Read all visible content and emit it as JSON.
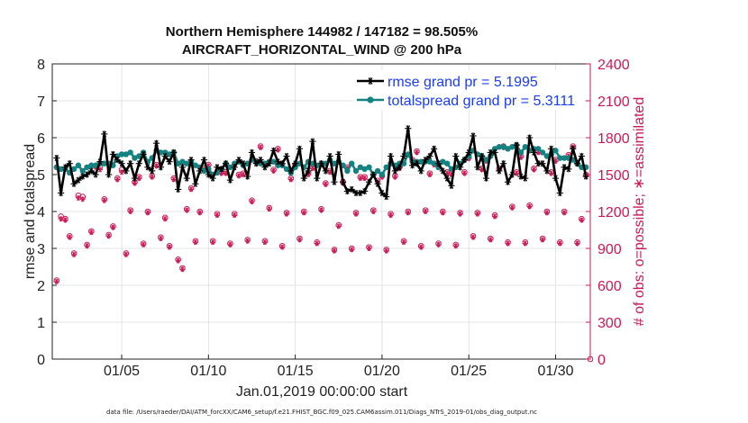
{
  "chart_data": {
    "type": "line",
    "title": "Northern Hemisphere 144982 / 147182 = 98.505%",
    "subtitle": "AIRCRAFT_HORIZONTAL_WIND @ 200 hPa",
    "xlabel": "Jan.01,2019 00:00:00 start",
    "ylabel": "rmse and totalspread",
    "ylabel_right": "# of obs: o=possible; ∗=assimilated",
    "footnote": "data file: /Users/raeder/DAI/ATM_forcXX/CAM6_setup/f.e21.FHIST_BGC.f09_025.CAM6assim.011/Diags_NTrS_2019-01/obs_diag_output.nc",
    "xlim": [
      1,
      32
    ],
    "ylim": [
      0,
      8
    ],
    "ylim_right": [
      0,
      2400
    ],
    "x_ticks": [
      5,
      10,
      15,
      20,
      25,
      30
    ],
    "x_tick_labels": [
      "01/05",
      "01/10",
      "01/15",
      "01/20",
      "01/25",
      "01/30"
    ],
    "y_ticks": [
      0,
      1,
      2,
      3,
      4,
      5,
      6,
      7,
      8
    ],
    "y_tick_labels": [
      "0",
      "1",
      "2",
      "3",
      "4",
      "5",
      "6",
      "7",
      "8"
    ],
    "y_ticks_right": [
      0,
      300,
      600,
      900,
      1200,
      1500,
      1800,
      2100,
      2400
    ],
    "y_tick_labels_right": [
      "0",
      "300",
      "600",
      "900",
      "1200",
      "1500",
      "1800",
      "2100",
      "2400"
    ],
    "grid": true,
    "legend_position": "top-right",
    "x": [
      1.25,
      1.5,
      1.75,
      2.0,
      2.25,
      2.5,
      2.75,
      3.0,
      3.25,
      3.5,
      3.75,
      4.0,
      4.25,
      4.5,
      4.75,
      5.0,
      5.25,
      5.5,
      5.75,
      6.0,
      6.25,
      6.5,
      6.75,
      7.0,
      7.25,
      7.5,
      7.75,
      8.0,
      8.25,
      8.5,
      8.75,
      9.0,
      9.25,
      9.5,
      9.75,
      10.0,
      10.25,
      10.5,
      10.75,
      11.0,
      11.25,
      11.5,
      11.75,
      12.0,
      12.25,
      12.5,
      12.75,
      13.0,
      13.25,
      13.5,
      13.75,
      14.0,
      14.25,
      14.5,
      14.75,
      15.0,
      15.25,
      15.5,
      15.75,
      16.0,
      16.25,
      16.5,
      16.75,
      17.0,
      17.25,
      17.5,
      17.75,
      18.0,
      18.25,
      18.5,
      18.75,
      19.0,
      19.25,
      19.5,
      19.75,
      20.0,
      20.25,
      20.5,
      20.75,
      21.0,
      21.25,
      21.5,
      21.75,
      22.0,
      22.25,
      22.5,
      22.75,
      23.0,
      23.25,
      23.5,
      23.75,
      24.0,
      24.25,
      24.5,
      24.75,
      25.0,
      25.25,
      25.5,
      25.75,
      26.0,
      26.25,
      26.5,
      26.75,
      27.0,
      27.25,
      27.5,
      27.75,
      28.0,
      28.25,
      28.5,
      28.75,
      29.0,
      29.25,
      29.5,
      29.75,
      30.0,
      30.25,
      30.5,
      30.75,
      31.0,
      31.25,
      31.5,
      31.75
    ],
    "series": [
      {
        "name": "rmse grand pr = 5.1995",
        "color": "#000000",
        "marker": "star",
        "values": [
          5.45,
          4.5,
          5.2,
          5.3,
          4.75,
          4.85,
          4.95,
          5.0,
          5.1,
          5.0,
          5.35,
          6.1,
          5.0,
          5.55,
          5.4,
          5.3,
          5.1,
          5.3,
          4.9,
          5.3,
          5.55,
          5.2,
          5.1,
          5.85,
          5.2,
          5.5,
          5.35,
          5.6,
          4.6,
          5.2,
          4.9,
          5.4,
          4.75,
          5.1,
          5.4,
          5.0,
          4.9,
          5.2,
          5.15,
          5.3,
          4.85,
          5.2,
          5.4,
          5.3,
          4.95,
          5.6,
          5.3,
          5.4,
          5.2,
          5.3,
          5.65,
          5.35,
          5.3,
          5.5,
          5.1,
          5.3,
          5.7,
          4.9,
          5.1,
          5.9,
          4.9,
          5.3,
          5.1,
          5.5,
          4.8,
          5.55,
          4.8,
          4.55,
          4.6,
          4.5,
          4.5,
          4.55,
          4.8,
          5.0,
          4.75,
          4.5,
          4.4,
          5.5,
          5.1,
          5.2,
          5.5,
          6.25,
          5.25,
          5.3,
          5.1,
          5.4,
          5.5,
          5.7,
          5.3,
          5.1,
          4.9,
          4.7,
          5.5,
          5.2,
          5.4,
          5.6,
          6.05,
          5.2,
          5.5,
          4.9,
          5.6,
          5.6,
          5.1,
          5.3,
          4.8,
          5.0,
          5.8,
          4.95,
          4.9,
          6.0,
          5.6,
          5.3,
          5.3,
          5.1,
          5.7,
          4.9,
          4.5,
          5.2,
          5.15,
          5.7,
          5.3,
          5.5,
          4.95
        ]
      },
      {
        "name": "totalspread grand pr = 5.3111",
        "color": "#138280",
        "marker": "circle",
        "values": [
          5.2,
          5.15,
          5.15,
          5.05,
          5.15,
          5.25,
          5.1,
          5.2,
          5.25,
          5.25,
          5.3,
          5.3,
          5.3,
          5.25,
          5.5,
          5.55,
          5.55,
          5.6,
          5.45,
          5.5,
          5.6,
          5.35,
          5.45,
          5.65,
          5.6,
          5.6,
          5.55,
          5.6,
          5.3,
          5.35,
          5.3,
          5.35,
          5.25,
          5.2,
          5.1,
          5.15,
          5.0,
          5.05,
          5.15,
          5.3,
          5.2,
          5.3,
          5.35,
          5.25,
          5.3,
          5.4,
          5.35,
          5.3,
          5.3,
          5.35,
          5.35,
          5.25,
          5.25,
          5.15,
          5.05,
          5.2,
          5.3,
          5.2,
          5.35,
          5.3,
          5.25,
          5.3,
          5.3,
          5.4,
          5.3,
          5.35,
          5.25,
          5.1,
          5.3,
          5.1,
          5.2,
          5.15,
          5.2,
          5.0,
          5.1,
          5.0,
          5.2,
          5.3,
          5.25,
          5.3,
          5.3,
          5.55,
          5.35,
          5.35,
          5.35,
          5.35,
          5.35,
          5.3,
          5.2,
          5.35,
          5.3,
          5.15,
          5.2,
          5.3,
          5.4,
          5.5,
          5.65,
          5.55,
          5.5,
          5.4,
          5.5,
          5.7,
          5.75,
          5.75,
          5.7,
          5.75,
          5.8,
          5.6,
          5.75,
          5.65,
          5.7,
          5.7,
          5.6,
          5.5,
          5.55,
          5.65,
          5.45,
          5.45,
          5.45,
          5.4,
          5.3,
          5.2,
          5.2
        ]
      }
    ],
    "obs_series": [
      {
        "name": "possible",
        "marker": "o",
        "color": "#cc1a55",
        "values": [
          640,
          1160,
          1140,
          1000,
          860,
          1330,
          1320,
          930,
          1040,
          1570,
          1560,
          1300,
          1010,
          1080,
          1470,
          1540,
          860,
          1210,
          1440,
          1480,
          940,
          1200,
          1490,
          1580,
          990,
          1150,
          920,
          1470,
          810,
          740,
          1220,
          1390,
          960,
          1200,
          1550,
          1580,
          960,
          1180,
          1520,
          1520,
          940,
          1180,
          1500,
          1510,
          970,
          1290,
          1610,
          1730,
          960,
          1230,
          1540,
          1710,
          920,
          1190,
          1470,
          1580,
          980,
          1200,
          1510,
          1560,
          950,
          1220,
          1430,
          1530,
          890,
          1090,
          1440,
          1560,
          900,
          1190,
          1480,
          1480,
          910,
          1210,
          1450,
          1490,
          890,
          1180,
          1490,
          1560,
          960,
          1200,
          1620,
          1690,
          920,
          1210,
          1510,
          1590,
          940,
          1200,
          1520,
          1510,
          930,
          1190,
          1520,
          1640,
          1000,
          1190,
          1550,
          1620,
          980,
          1170,
          1550,
          1730,
          950,
          1240,
          1520,
          1650,
          950,
          1250,
          1550,
          1690,
          980,
          1200,
          1520,
          1620,
          950,
          1200,
          1660,
          1730,
          950,
          1140,
          1500
        ]
      },
      {
        "name": "assimilated",
        "marker": "asterisk",
        "color": "#cc1a55",
        "values": [
          630,
          1140,
          1130,
          990,
          850,
          1310,
          1300,
          920,
          1030,
          1560,
          1540,
          1290,
          1000,
          1070,
          1460,
          1520,
          850,
          1200,
          1430,
          1470,
          930,
          1190,
          1480,
          1570,
          980,
          1140,
          910,
          1460,
          800,
          730,
          1210,
          1380,
          950,
          1190,
          1540,
          1570,
          950,
          1170,
          1510,
          1510,
          930,
          1170,
          1490,
          1500,
          960,
          1280,
          1600,
          1720,
          950,
          1220,
          1530,
          1700,
          910,
          1180,
          1460,
          1570,
          970,
          1190,
          1500,
          1550,
          940,
          1210,
          1420,
          1520,
          880,
          1080,
          1430,
          1550,
          890,
          1180,
          1470,
          1470,
          900,
          1200,
          1440,
          1480,
          880,
          1170,
          1480,
          1550,
          950,
          1190,
          1610,
          1680,
          910,
          1200,
          1500,
          1580,
          930,
          1190,
          1510,
          1500,
          920,
          1180,
          1510,
          1630,
          990,
          1180,
          1540,
          1610,
          970,
          1160,
          1540,
          1720,
          940,
          1230,
          1510,
          1640,
          940,
          1240,
          1540,
          1680,
          970,
          1190,
          1510,
          1610,
          940,
          1190,
          1650,
          1720,
          940,
          1130,
          1490
        ]
      }
    ]
  }
}
